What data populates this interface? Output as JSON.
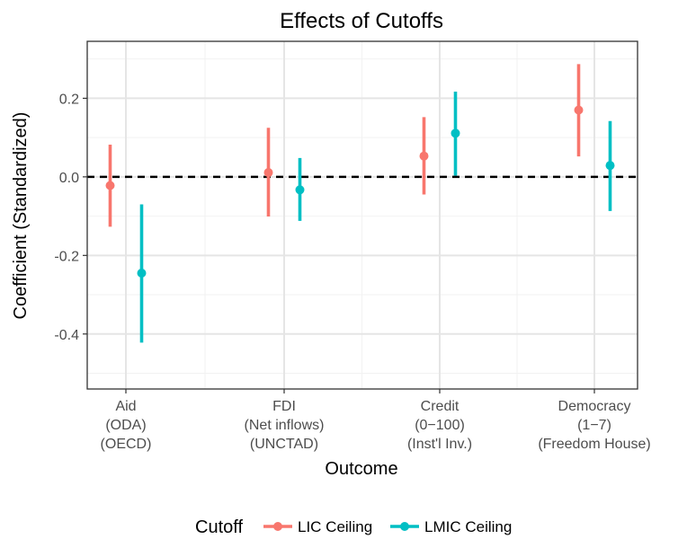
{
  "chart_data": {
    "type": "pointrange",
    "title": "Effects of Cutoffs",
    "xlabel": "Outcome",
    "ylabel": "Coefficient (Standardized)",
    "ylim": [
      -0.54,
      0.345
    ],
    "y_ticks": [
      0.2,
      0.0,
      -0.2,
      -0.4
    ],
    "y_tick_labels": [
      "0.2",
      "0.0",
      "-0.2",
      "-0.4"
    ],
    "reference_line": 0.0,
    "categories": [
      {
        "lines": [
          "Aid",
          "(ODA)",
          "(OECD)"
        ]
      },
      {
        "lines": [
          "FDI",
          "(Net inflows)",
          "(UNCTAD)"
        ]
      },
      {
        "lines": [
          "Credit",
          "(0−100)",
          "(Inst'l Inv.)"
        ]
      },
      {
        "lines": [
          "Democracy",
          "(1−7)",
          "(Freedom House)"
        ]
      }
    ],
    "series": [
      {
        "name": "LIC Ceiling",
        "color": "#F8766D",
        "estimate": [
          -0.022,
          0.011,
          0.053,
          0.17
        ],
        "lower": [
          -0.127,
          -0.101,
          -0.045,
          0.052
        ],
        "upper": [
          0.082,
          0.125,
          0.152,
          0.287
        ]
      },
      {
        "name": "LMIC Ceiling",
        "color": "#00BFC4",
        "estimate": [
          -0.245,
          -0.033,
          0.111,
          0.029
        ],
        "lower": [
          -0.422,
          -0.112,
          0.003,
          -0.087
        ],
        "upper": [
          -0.07,
          0.048,
          0.217,
          0.142
        ]
      }
    ],
    "legend_title": "Cutoff",
    "legend_position": "bottom"
  }
}
